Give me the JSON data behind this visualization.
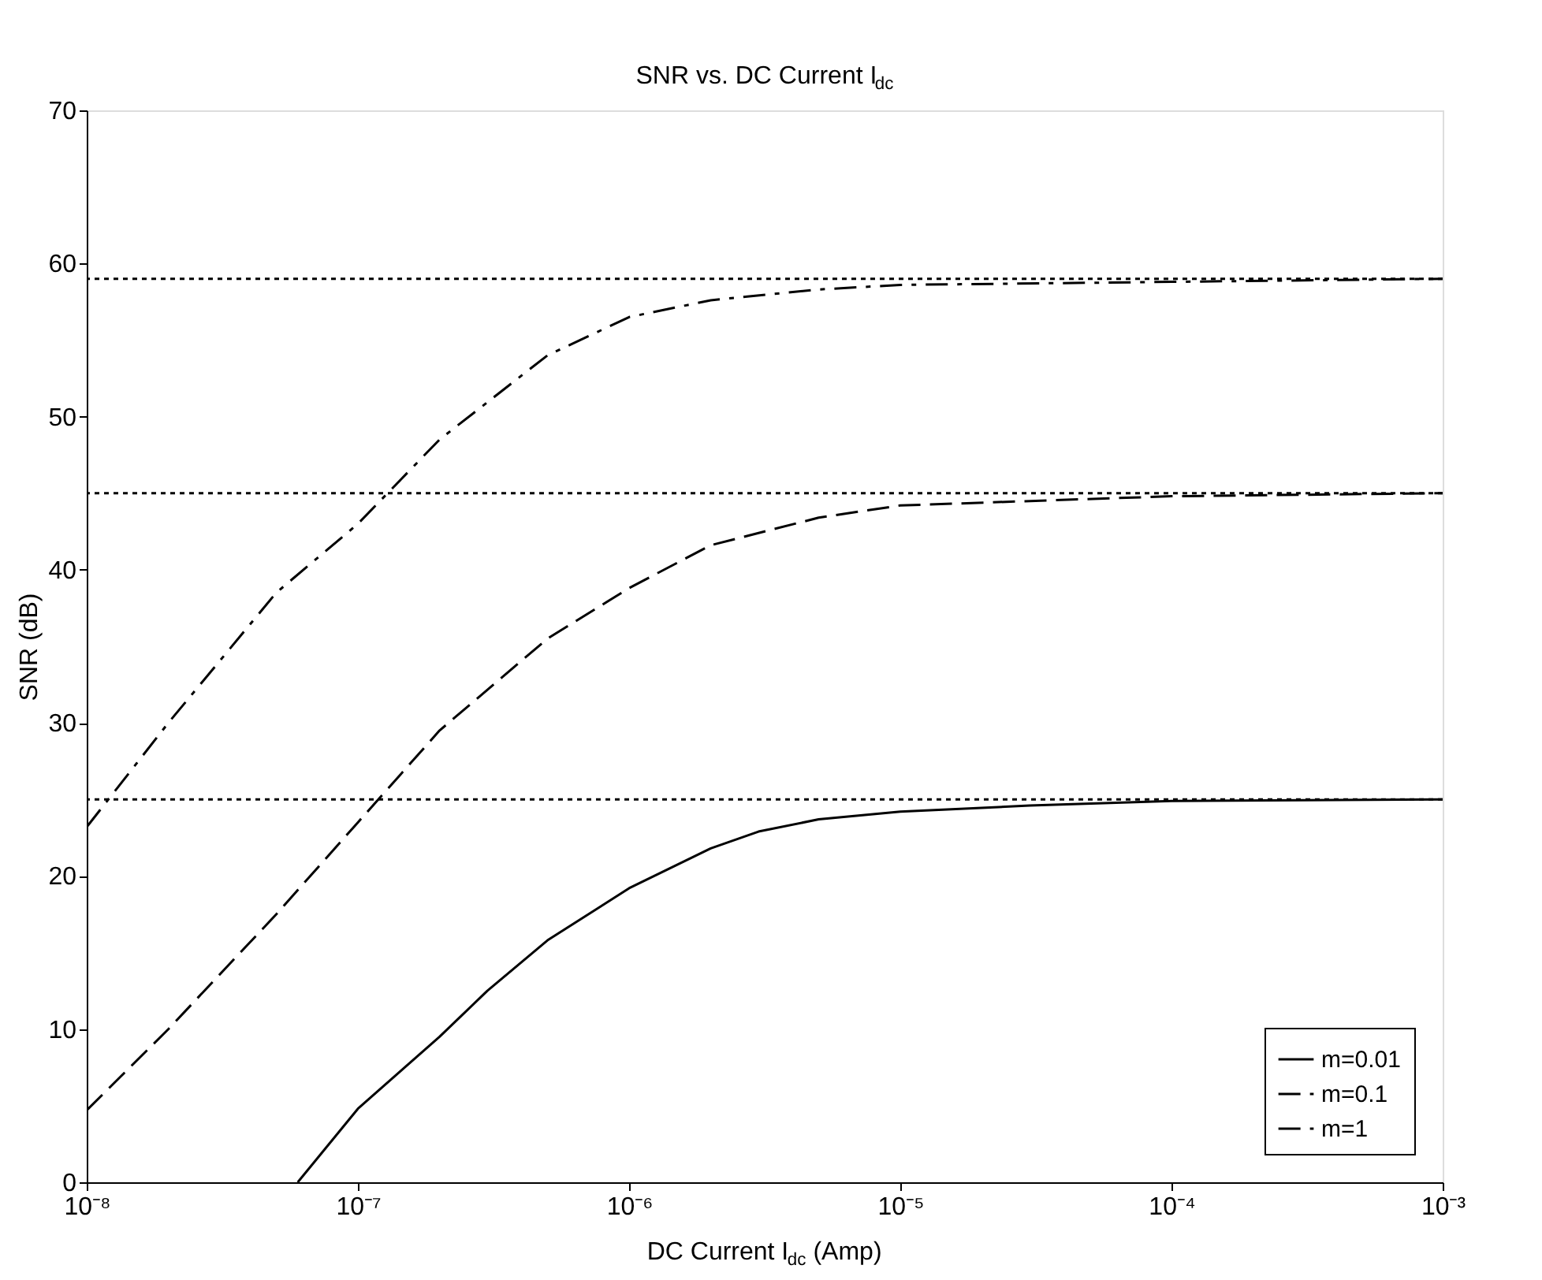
{
  "chart_data": {
    "type": "line",
    "title": "SNR vs. DC Current I$_{dc}$",
    "xlabel": "DC Current I$_{dc}$ (Amp)",
    "ylabel": "SNR (dB)",
    "log": "x",
    "grid": false,
    "legend": "bottom right",
    "marker": "none",
    "xlim": [
      1e-08,
      0.001
    ],
    "xticks": [
      {
        "value": 1e-08,
        "label": "10⁻⁸"
      },
      {
        "value": 1e-07,
        "label": "10⁻⁷"
      },
      {
        "value": 1e-06,
        "label": "10⁻⁶"
      },
      {
        "value": 1e-05,
        "label": "10⁻⁵"
      },
      {
        "value": 0.0001,
        "label": "10⁻⁴"
      },
      {
        "value": 0.001,
        "label": "10⁻³"
      }
    ],
    "ylim": [
      0,
      70
    ],
    "yticks": [
      0,
      10,
      20,
      30,
      40,
      50,
      60,
      70
    ],
    "series": [
      {
        "name": "m=0.01",
        "color": "#000000",
        "line_style": "solid",
        "x": [
          6e-08,
          1e-07,
          2e-07,
          3e-07,
          5e-07,
          1e-06,
          2e-06,
          3e-06,
          5e-06,
          1e-05,
          3e-05,
          0.0001,
          0.001
        ],
        "values": [
          0,
          4.8,
          9.5,
          12.5,
          15.8,
          19.2,
          21.8,
          22.9,
          23.7,
          24.2,
          24.6,
          24.9,
          25
        ]
      },
      {
        "name": "m=0.1",
        "color": "#000000",
        "line_style": "dashed",
        "x": [
          1e-08,
          2e-08,
          5e-08,
          1e-07,
          2e-07,
          5e-07,
          1e-06,
          2e-06,
          5e-06,
          1e-05,
          0.0001,
          0.001
        ],
        "values": [
          4.7,
          10,
          17.5,
          23.5,
          29.5,
          35.5,
          38.8,
          41.6,
          43.4,
          44.2,
          44.8,
          45
        ]
      },
      {
        "name": "m=1",
        "color": "#000000",
        "line_style": "dashdot",
        "x": [
          1e-08,
          2e-08,
          5e-08,
          1e-07,
          2e-07,
          5e-07,
          1e-06,
          2e-06,
          5e-06,
          1e-05,
          0.0001,
          0.001
        ],
        "values": [
          23.2,
          30,
          38.5,
          43,
          48.5,
          54,
          56.5,
          57.6,
          58.3,
          58.6,
          58.8,
          59
        ]
      }
    ],
    "ref_lines": [
      {
        "axis": "y",
        "value": 25,
        "color": "#000000",
        "line_style": "dotted"
      },
      {
        "axis": "y",
        "value": 45,
        "color": "#000000",
        "line_style": "dotted"
      },
      {
        "axis": "y",
        "value": 59,
        "color": "#000000",
        "line_style": "dotted"
      }
    ]
  }
}
